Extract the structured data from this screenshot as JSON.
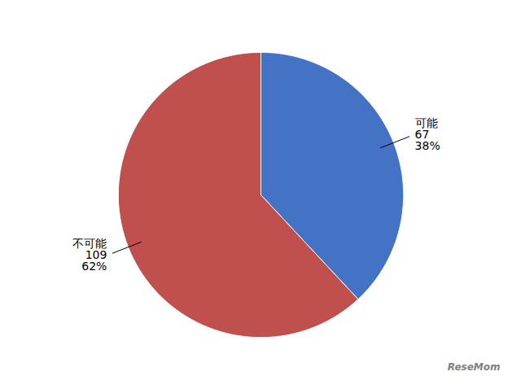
{
  "chart_data": {
    "type": "pie",
    "categories": [
      "可能",
      "不可能"
    ],
    "values": [
      67,
      109
    ],
    "percents": [
      38,
      62
    ],
    "percent_labels": [
      "38%",
      "62%"
    ],
    "colors": [
      "#4472C4",
      "#C0504D"
    ],
    "data_labels": true,
    "annotations": [
      "ReseMom"
    ]
  }
}
